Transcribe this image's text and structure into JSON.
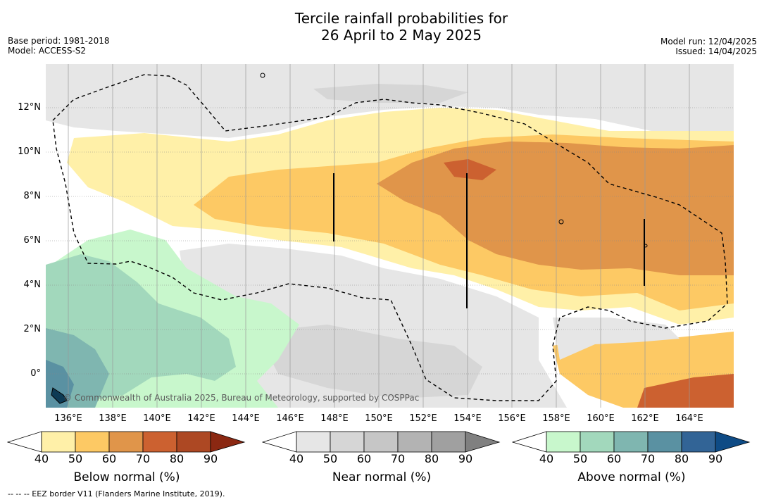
{
  "title_line1": "Tercile rainfall probabilities for",
  "title_line2": "26 April to 2 May 2025",
  "base_period": "Base period: 1981-2018",
  "model": "Model: ACCESS-S2",
  "model_run": "Model run: 12/04/2025",
  "issued": "Issued: 14/04/2025",
  "lat_labels": [
    "12°N",
    "10°N",
    "8°N",
    "6°N",
    "4°N",
    "2°N",
    "0°"
  ],
  "lon_labels": [
    "136°E",
    "138°E",
    "140°E",
    "142°E",
    "144°E",
    "146°E",
    "148°E",
    "150°E",
    "152°E",
    "154°E",
    "156°E",
    "158°E",
    "160°E",
    "162°E",
    "164°E"
  ],
  "copyright": "© Commonwealth of Australia 2025, Bureau of Meteorology, supported by COSPPac",
  "footnote": "-- -- -- EEZ border V11 (Flanders Marine Institute, 2019).",
  "colorbars": {
    "below": {
      "title": "Below normal (%)",
      "ticks": [
        "40",
        "50",
        "60",
        "70",
        "80",
        "90"
      ],
      "colors": [
        "#fff0a8",
        "#fdc964",
        "#e0954a",
        "#cc6130",
        "#ad4823",
        "#8b2812"
      ]
    },
    "near": {
      "title": "Near normal (%)",
      "ticks": [
        "40",
        "50",
        "60",
        "70",
        "80",
        "90"
      ],
      "colors": [
        "#e6e6e6",
        "#d6d6d6",
        "#c6c6c6",
        "#b3b3b3",
        "#a0a0a0",
        "#808080"
      ]
    },
    "above": {
      "title": "Above normal (%)",
      "ticks": [
        "40",
        "50",
        "60",
        "70",
        "80",
        "90"
      ],
      "colors": [
        "#c8f7cc",
        "#a2d8bc",
        "#7fb6b0",
        "#5a91a2",
        "#326496",
        "#0e4b85"
      ]
    }
  }
}
